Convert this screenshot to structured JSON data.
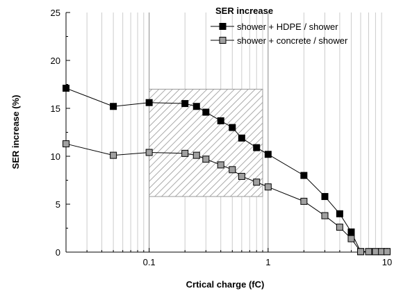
{
  "chart_data": {
    "type": "line",
    "xlabel": "Crtical charge (fC)",
    "ylabel": "SER increase (%)",
    "xscale": "log",
    "xlim": [
      0.02,
      10
    ],
    "ylim": [
      0,
      25
    ],
    "x_ticks": [
      {
        "value": 0.1,
        "label": "0.1"
      },
      {
        "value": 1,
        "label": "1"
      },
      {
        "value": 10,
        "label": "10"
      }
    ],
    "y_ticks": [
      {
        "value": 0,
        "label": "0"
      },
      {
        "value": 5,
        "label": "5"
      },
      {
        "value": 10,
        "label": "10"
      },
      {
        "value": 15,
        "label": "15"
      },
      {
        "value": 20,
        "label": "20"
      },
      {
        "value": 25,
        "label": "25"
      }
    ],
    "grid": "vertical minor lines",
    "legend": {
      "title": "SER increase",
      "placement": "top-right"
    },
    "highlight_region": {
      "x": [
        0.1,
        0.9
      ],
      "y": [
        5.8,
        17
      ],
      "pattern": "diagonal hatch"
    },
    "series": [
      {
        "name": "shower + HDPE / shower",
        "marker": "square",
        "color": "#000000",
        "x": [
          0.02,
          0.05,
          0.1,
          0.2,
          0.25,
          0.3,
          0.4,
          0.5,
          0.6,
          0.8,
          1,
          2,
          3,
          4,
          5,
          6,
          7,
          8,
          9,
          10
        ],
        "y": [
          17.1,
          15.2,
          15.6,
          15.5,
          15.2,
          14.6,
          13.7,
          13.0,
          11.9,
          10.9,
          10.2,
          8.0,
          5.8,
          4.0,
          2.1,
          0.05,
          0.05,
          0.05,
          0.05,
          0.05
        ]
      },
      {
        "name": "shower + concrete / shower",
        "marker": "square",
        "color": "#a0a0a0",
        "x": [
          0.02,
          0.05,
          0.1,
          0.2,
          0.25,
          0.3,
          0.4,
          0.5,
          0.6,
          0.8,
          1,
          2,
          3,
          4,
          5,
          6,
          7,
          8,
          9,
          10
        ],
        "y": [
          11.3,
          10.1,
          10.4,
          10.3,
          10.1,
          9.7,
          9.1,
          8.6,
          7.9,
          7.3,
          6.8,
          5.3,
          3.8,
          2.6,
          1.4,
          0.05,
          0.05,
          0.05,
          0.05,
          0.05
        ]
      }
    ]
  }
}
